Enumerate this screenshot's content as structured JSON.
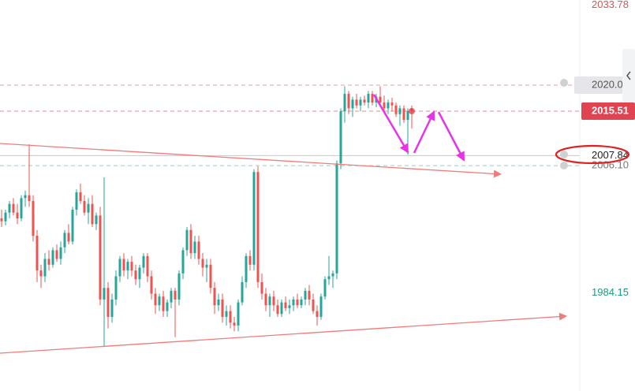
{
  "chart_data": {
    "type": "candlestick",
    "ylim": [
      1967.2,
      2034.7
    ],
    "up_color": "#26a69a",
    "down_color": "#ef5350",
    "price_levels": [
      {
        "value": 2033.78,
        "label": "2033.78",
        "color": "#d9534f"
      },
      {
        "value": 2020,
        "label": "2020.00",
        "color": "#555555",
        "box": "#e6e6ea",
        "line": "#e3a0a6",
        "dash": true
      },
      {
        "value": 2015.51,
        "label": "2015.51",
        "color": "#ffffff",
        "box": "#e04450",
        "line": "#e58a90",
        "dash": true
      },
      {
        "value": 2007.84,
        "label": "2007.84",
        "color": "#222222",
        "line": "#c8c8c8",
        "dash": false
      },
      {
        "value": 2006.1,
        "label": "2006.10",
        "color": "#777777",
        "line": "#9fc9c0",
        "dash": true
      },
      {
        "value": 1984.15,
        "label": "1984.15",
        "color": "#1a9a80"
      }
    ],
    "ohlc": [
      [
        1997,
        1998.5,
        1995.5,
        1996.5
      ],
      [
        1996.5,
        1998.5,
        1995.8,
        1998
      ],
      [
        1998,
        2000,
        1997,
        1999.5
      ],
      [
        1999.5,
        2000.5,
        1997.5,
        1998
      ],
      [
        1998,
        1999.5,
        1996,
        1997
      ],
      [
        1997,
        2001,
        1996.5,
        2000.5
      ],
      [
        2000.5,
        2001.8,
        1999,
        2001
      ],
      [
        2001,
        2009.8,
        1999,
        2000
      ],
      [
        2000,
        2001,
        1993,
        1994
      ],
      [
        1994,
        1995,
        1986,
        1988
      ],
      [
        1988,
        1989,
        1985,
        1987
      ],
      [
        1987,
        1991,
        1986,
        1990
      ],
      [
        1990,
        1991.5,
        1988,
        1989
      ],
      [
        1989,
        1992,
        1988.5,
        1991.5
      ],
      [
        1991.5,
        1992.5,
        1989.5,
        1990
      ],
      [
        1990,
        1993,
        1989,
        1992
      ],
      [
        1992,
        1995,
        1991,
        1994.5
      ],
      [
        1994.5,
        1996,
        1992.5,
        1993
      ],
      [
        1993,
        1999,
        1992.5,
        1998.5
      ],
      [
        1998.5,
        2002,
        1997.5,
        2001.5
      ],
      [
        2001.5,
        2003,
        1999.5,
        2000
      ],
      [
        2000,
        2001,
        1997.5,
        1998
      ],
      [
        1998,
        2000.5,
        1996,
        1999.5
      ],
      [
        1999.5,
        2001,
        1995.5,
        1996
      ],
      [
        1996,
        1998,
        1995,
        1997.5
      ],
      [
        1997.5,
        1999,
        1982,
        1983
      ],
      [
        1983,
        2004.1,
        1974.8,
        1985
      ],
      [
        1985,
        1986,
        1978,
        1980
      ],
      [
        1980,
        1984,
        1979,
        1983
      ],
      [
        1983,
        1988,
        1982,
        1987
      ],
      [
        1987,
        1990.5,
        1986,
        1990
      ],
      [
        1990,
        1991,
        1987,
        1988
      ],
      [
        1988,
        1990,
        1986.5,
        1989.5
      ],
      [
        1989.5,
        1990.5,
        1987,
        1988
      ],
      [
        1988,
        1989,
        1985.5,
        1986.5
      ],
      [
        1986.5,
        1989,
        1985,
        1988.5
      ],
      [
        1988.5,
        1991,
        1987.5,
        1990.5
      ],
      [
        1990.5,
        1991,
        1986,
        1987
      ],
      [
        1987,
        1988,
        1983,
        1984
      ],
      [
        1984,
        1985,
        1980.5,
        1982
      ],
      [
        1982,
        1984,
        1981,
        1983.5
      ],
      [
        1983.5,
        1984.5,
        1980,
        1981
      ],
      [
        1981,
        1983,
        1980,
        1982.5
      ],
      [
        1982.5,
        1985,
        1981.5,
        1984.5
      ],
      [
        1984.5,
        1985,
        1976.5,
        1983
      ],
      [
        1983,
        1988,
        1982,
        1987.5
      ],
      [
        1987.5,
        1992,
        1986.5,
        1991.5
      ],
      [
        1991.5,
        1995.5,
        1990.5,
        1995
      ],
      [
        1995,
        1996,
        1990,
        1991
      ],
      [
        1991,
        1994,
        1990,
        1993
      ],
      [
        1993,
        1994,
        1989,
        1990
      ],
      [
        1990,
        1991,
        1987,
        1988.5
      ],
      [
        1988.5,
        1990,
        1986,
        1989
      ],
      [
        1989,
        1990,
        1984,
        1985
      ],
      [
        1985,
        1986,
        1980.5,
        1982
      ],
      [
        1982,
        1984,
        1981,
        1983
      ],
      [
        1983,
        1984,
        1979,
        1980
      ],
      [
        1980,
        1982,
        1978.5,
        1981
      ],
      [
        1981,
        1982,
        1978,
        1979
      ],
      [
        1979,
        1980,
        1977.5,
        1978.5
      ],
      [
        1978.5,
        1983,
        1977.5,
        1982.5
      ],
      [
        1982.5,
        1987,
        1982,
        1986
      ],
      [
        1986,
        1991,
        1985,
        1990.5
      ],
      [
        1990.5,
        1991.5,
        1988,
        1989
      ],
      [
        1989,
        2005.5,
        1988,
        2005
      ],
      [
        2005,
        2006,
        1985,
        1986
      ],
      [
        1986,
        1987.5,
        1983,
        1984
      ],
      [
        1984,
        1985,
        1981,
        1982
      ],
      [
        1982,
        1984,
        1980,
        1983.5
      ],
      [
        1983.5,
        1984.5,
        1981,
        1982
      ],
      [
        1982,
        1983,
        1980,
        1980.5
      ],
      [
        1980.5,
        1983,
        1980,
        1982.5
      ],
      [
        1982.5,
        1983.5,
        1981,
        1981.5
      ],
      [
        1981.5,
        1983,
        1980.5,
        1982
      ],
      [
        1982,
        1983.5,
        1981,
        1983
      ],
      [
        1983,
        1984,
        1981.5,
        1982
      ],
      [
        1982,
        1983.5,
        1981.5,
        1983
      ],
      [
        1983,
        1985,
        1982,
        1984.5
      ],
      [
        1984.5,
        1985.5,
        1982,
        1983
      ],
      [
        1983,
        1984,
        1980.5,
        1981
      ],
      [
        1981,
        1982,
        1978.5,
        1980
      ],
      [
        1980,
        1984,
        1979.5,
        1983.5
      ],
      [
        1983.5,
        1987,
        1983,
        1986.5
      ],
      [
        1986.5,
        1990.5,
        1985.5,
        1987
      ],
      [
        1987,
        1988,
        1985,
        1987.5
      ],
      [
        1987.5,
        2007,
        1986.5,
        2006.5
      ],
      [
        2006.5,
        2016,
        2005.5,
        2015.5
      ],
      [
        2015.5,
        2019.8,
        2013.5,
        2018.5
      ],
      [
        2018.5,
        2019,
        2015,
        2016
      ],
      [
        2016,
        2018,
        2014.5,
        2017.5
      ],
      [
        2017.5,
        2018.5,
        2016,
        2016.5
      ],
      [
        2016.5,
        2018,
        2015.5,
        2017.5
      ],
      [
        2017.5,
        2018.2,
        2016.5,
        2017
      ],
      [
        2017,
        2019,
        2016,
        2018.5
      ],
      [
        2018.5,
        2019,
        2016.5,
        2017
      ],
      [
        2017,
        2018.5,
        2016.2,
        2018
      ],
      [
        2018,
        2019.8,
        2016.5,
        2017
      ],
      [
        2017,
        2018.2,
        2015.5,
        2016
      ],
      [
        2016,
        2017.5,
        2015,
        2017
      ],
      [
        2017,
        2017.8,
        2015.5,
        2016.5
      ],
      [
        2016.5,
        2017,
        2014.5,
        2015
      ],
      [
        2015,
        2016.5,
        2013,
        2016
      ],
      [
        2016,
        2016.5,
        2013.5,
        2014
      ],
      [
        2014,
        2016,
        2008,
        2015.5
      ],
      [
        2016,
        2016.5,
        2012.5,
        2015.51
      ]
    ]
  }
}
